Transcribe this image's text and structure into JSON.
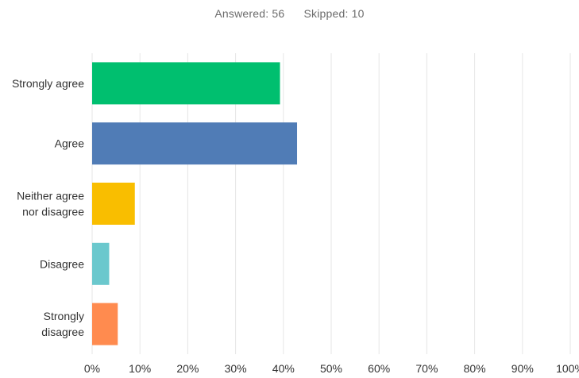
{
  "summary": {
    "answered_label": "Answered: 56",
    "skipped_label": "Skipped: 10"
  },
  "chart_data": {
    "type": "bar",
    "orientation": "horizontal",
    "categories": [
      [
        "Strongly agree"
      ],
      [
        "Agree"
      ],
      [
        "Neither agree",
        "nor disagree"
      ],
      [
        "Disagree"
      ],
      [
        "Strongly",
        "disagree"
      ]
    ],
    "values": [
      39.29,
      42.86,
      8.93,
      3.57,
      5.36
    ],
    "colors": [
      "#00bf6f",
      "#507cb6",
      "#f9be00",
      "#6bc8cd",
      "#ff8b4f"
    ],
    "xlim": [
      0,
      100
    ],
    "x_ticks": [
      "0%",
      "10%",
      "20%",
      "30%",
      "40%",
      "50%",
      "60%",
      "70%",
      "80%",
      "90%",
      "100%"
    ],
    "grid": true,
    "grid_color": "#e6e6e6"
  }
}
